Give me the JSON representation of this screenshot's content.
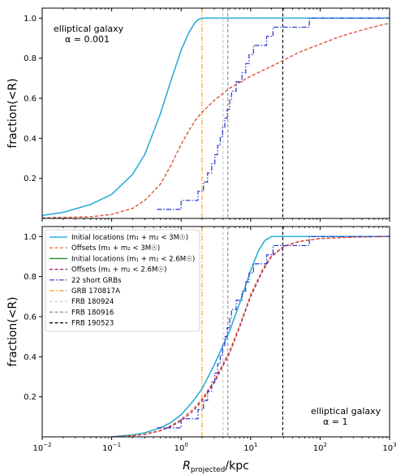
{
  "figure": {
    "xlabel": "R_projected/kpc",
    "ylabel": "fraction(<R)",
    "x_scale": "log",
    "xlim": [
      0.01,
      1000
    ],
    "ylim": [
      0,
      1.05
    ],
    "x_ticks": [
      {
        "value": 0.01,
        "base": "10",
        "exp": "−2"
      },
      {
        "value": 0.1,
        "base": "10",
        "exp": "−1"
      },
      {
        "value": 1,
        "base": "10",
        "exp": "0"
      },
      {
        "value": 10,
        "base": "10",
        "exp": "1"
      },
      {
        "value": 100,
        "base": "10",
        "exp": "2"
      },
      {
        "value": 1000,
        "base": "10",
        "exp": "3"
      }
    ],
    "y_ticks": [
      {
        "value": 0.2,
        "label": "0.2"
      },
      {
        "value": 0.4,
        "label": "0.4"
      },
      {
        "value": 0.6,
        "label": "0.6"
      },
      {
        "value": 0.8,
        "label": "0.8"
      },
      {
        "value": 1.0,
        "label": "1.0"
      }
    ],
    "colors": {
      "initial_3": "#2ab0e8",
      "offsets_3": "#e8562a",
      "initial_26": "#1a8a2a",
      "offsets_26": "#8c1a6a",
      "short_grbs": "#2233cc",
      "grb_170817a": "#f0a020",
      "frb_180924": "#c8c8c8",
      "frb_180916": "#8c8c8c",
      "frb_190523": "#000000"
    }
  },
  "chart_data": [
    {
      "type": "line",
      "panel": "top",
      "annotation": {
        "line1": "elliptical galaxy",
        "line2": "α = 0.001",
        "position": "top-left"
      },
      "xlim": [
        0.01,
        1000
      ],
      "ylim": [
        0,
        1.05
      ],
      "x_scale": "log",
      "series": [
        {
          "key": "initial_26",
          "style": "solid",
          "x": [
            0.01,
            0.02,
            0.05,
            0.1,
            0.2,
            0.3,
            0.5,
            0.7,
            1.0,
            1.3,
            1.6,
            1.8,
            2.0,
            1000
          ],
          "y": [
            0.015,
            0.03,
            0.07,
            0.12,
            0.22,
            0.32,
            0.52,
            0.68,
            0.84,
            0.93,
            0.98,
            0.995,
            1.0,
            1.0
          ]
        },
        {
          "key": "initial_3",
          "style": "solid",
          "x": [
            0.01,
            0.02,
            0.05,
            0.1,
            0.2,
            0.3,
            0.5,
            0.7,
            1.0,
            1.3,
            1.6,
            1.8,
            2.0,
            1000
          ],
          "y": [
            0.015,
            0.03,
            0.07,
            0.12,
            0.22,
            0.32,
            0.52,
            0.68,
            0.84,
            0.93,
            0.98,
            0.995,
            1.0,
            1.0
          ]
        },
        {
          "key": "offsets_26",
          "style": "dashed",
          "x": [
            0.01,
            0.05,
            0.1,
            0.2,
            0.3,
            0.5,
            0.7,
            1.0,
            1.3,
            1.6,
            2.0,
            3.0,
            5.0,
            10,
            20,
            30,
            50,
            100,
            200,
            500,
            1000
          ],
          "y": [
            0.003,
            0.008,
            0.02,
            0.05,
            0.09,
            0.17,
            0.26,
            0.37,
            0.44,
            0.49,
            0.53,
            0.59,
            0.65,
            0.71,
            0.76,
            0.79,
            0.83,
            0.87,
            0.91,
            0.95,
            0.975
          ]
        },
        {
          "key": "offsets_3",
          "style": "dashed",
          "x": [
            0.01,
            0.05,
            0.1,
            0.2,
            0.3,
            0.5,
            0.7,
            1.0,
            1.3,
            1.6,
            2.0,
            3.0,
            5.0,
            10,
            20,
            30,
            50,
            100,
            200,
            500,
            1000
          ],
          "y": [
            0.003,
            0.008,
            0.02,
            0.05,
            0.09,
            0.17,
            0.26,
            0.37,
            0.44,
            0.49,
            0.53,
            0.59,
            0.65,
            0.71,
            0.76,
            0.79,
            0.83,
            0.87,
            0.91,
            0.95,
            0.975
          ]
        },
        {
          "key": "short_grbs",
          "style": "dashdot",
          "step": true,
          "x": [
            0.45,
            1.0,
            1.75,
            2.1,
            2.4,
            2.75,
            3.05,
            3.35,
            3.65,
            3.95,
            4.25,
            4.6,
            5.0,
            5.3,
            6.2,
            7.5,
            8.5,
            9.5,
            11.0,
            14.0,
            17.0,
            21.0,
            29.0,
            40.0,
            70.0,
            1000
          ],
          "y": [
            0.045,
            0.09,
            0.136,
            0.182,
            0.227,
            0.273,
            0.318,
            0.364,
            0.409,
            0.455,
            0.5,
            0.545,
            0.591,
            0.636,
            0.682,
            0.727,
            0.773,
            0.818,
            0.864,
            0.864,
            0.909,
            0.955,
            0.955,
            0.955,
            1.0,
            1.0
          ]
        }
      ],
      "vlines": [
        {
          "key": "grb_170817a",
          "x": 2.0,
          "style": "dashdot"
        },
        {
          "key": "frb_180924",
          "x": 4.0,
          "style": "dashed"
        },
        {
          "key": "frb_180916",
          "x": 4.7,
          "style": "dashed"
        },
        {
          "key": "frb_190523",
          "x": 29.0,
          "style": "dashed"
        }
      ]
    },
    {
      "type": "line",
      "panel": "bottom",
      "annotation": {
        "line1": "elliptical galaxy",
        "line2": "α = 1",
        "position": "bottom-right"
      },
      "xlim": [
        0.01,
        1000
      ],
      "ylim": [
        0,
        1.05
      ],
      "x_scale": "log",
      "legend": {
        "position": "upper-left",
        "entries": [
          {
            "key": "initial_3",
            "label": "Initial locations (m₁ + m₂ < 3M☉)",
            "style": "solid"
          },
          {
            "key": "offsets_3",
            "label": "Offsets (m₁ + m₂ < 3M☉)",
            "style": "dashed"
          },
          {
            "key": "initial_26",
            "label": "Initial locations (m₁ + m₂ < 2.6M☉)",
            "style": "solid"
          },
          {
            "key": "offsets_26",
            "label": "Offsets (m₁ + m₂ < 2.6M☉)",
            "style": "dashed"
          },
          {
            "key": "short_grbs",
            "label": "22 short GRBs",
            "style": "dashdot"
          },
          {
            "key": "grb_170817a",
            "label": "GRB 170817A",
            "style": "dashdot"
          },
          {
            "key": "frb_180924",
            "label": "FRB 180924",
            "style": "dashed"
          },
          {
            "key": "frb_180916",
            "label": "FRB 180916",
            "style": "dashed"
          },
          {
            "key": "frb_190523",
            "label": "FRB 190523",
            "style": "dashed"
          }
        ]
      },
      "series": [
        {
          "key": "initial_26",
          "style": "solid",
          "x": [
            0.1,
            0.2,
            0.3,
            0.5,
            0.7,
            1.0,
            1.5,
            2.0,
            3.0,
            5.0,
            7.0,
            10,
            13,
            16,
            20,
            30,
            1000
          ],
          "y": [
            0.0,
            0.01,
            0.02,
            0.045,
            0.07,
            0.11,
            0.18,
            0.24,
            0.36,
            0.53,
            0.67,
            0.83,
            0.93,
            0.98,
            1.0,
            1.0,
            1.0
          ]
        },
        {
          "key": "initial_3",
          "style": "solid",
          "x": [
            0.1,
            0.2,
            0.3,
            0.5,
            0.7,
            1.0,
            1.5,
            2.0,
            3.0,
            5.0,
            7.0,
            10,
            13,
            16,
            20,
            30,
            1000
          ],
          "y": [
            0.0,
            0.01,
            0.02,
            0.045,
            0.07,
            0.11,
            0.18,
            0.24,
            0.36,
            0.53,
            0.67,
            0.83,
            0.93,
            0.98,
            1.0,
            1.0,
            1.0
          ]
        },
        {
          "key": "offsets_26",
          "style": "dashed",
          "x": [
            0.1,
            0.2,
            0.3,
            0.5,
            0.7,
            1.0,
            1.5,
            2.0,
            3.0,
            5.0,
            7.0,
            10,
            15,
            20,
            30,
            50,
            100,
            300,
            1000
          ],
          "y": [
            0.0,
            0.005,
            0.012,
            0.03,
            0.05,
            0.08,
            0.13,
            0.18,
            0.27,
            0.42,
            0.55,
            0.7,
            0.83,
            0.9,
            0.95,
            0.975,
            0.99,
            0.997,
            1.0
          ]
        },
        {
          "key": "offsets_3",
          "style": "dashed",
          "x": [
            0.1,
            0.2,
            0.3,
            0.5,
            0.7,
            1.0,
            1.5,
            2.0,
            3.0,
            5.0,
            7.0,
            10,
            15,
            20,
            30,
            50,
            100,
            300,
            1000
          ],
          "y": [
            0.0,
            0.006,
            0.014,
            0.033,
            0.055,
            0.088,
            0.14,
            0.19,
            0.28,
            0.43,
            0.56,
            0.71,
            0.84,
            0.905,
            0.952,
            0.977,
            0.991,
            0.997,
            1.0
          ]
        },
        {
          "key": "short_grbs",
          "style": "dashdot",
          "step": true,
          "x": [
            0.45,
            1.0,
            1.75,
            2.1,
            2.4,
            2.75,
            3.05,
            3.35,
            3.65,
            3.95,
            4.25,
            4.6,
            5.0,
            5.3,
            6.2,
            7.5,
            8.5,
            9.5,
            11.0,
            14.0,
            17.0,
            21.0,
            29.0,
            40.0,
            70.0,
            1000
          ],
          "y": [
            0.045,
            0.09,
            0.136,
            0.182,
            0.227,
            0.273,
            0.318,
            0.364,
            0.409,
            0.455,
            0.5,
            0.545,
            0.591,
            0.636,
            0.682,
            0.727,
            0.773,
            0.818,
            0.864,
            0.864,
            0.909,
            0.955,
            0.955,
            0.955,
            1.0,
            1.0
          ]
        }
      ],
      "vlines": [
        {
          "key": "grb_170817a",
          "x": 2.0,
          "style": "dashdot"
        },
        {
          "key": "frb_180924",
          "x": 4.0,
          "style": "dashed"
        },
        {
          "key": "frb_180916",
          "x": 4.7,
          "style": "dashed"
        },
        {
          "key": "frb_190523",
          "x": 29.0,
          "style": "dashed"
        }
      ]
    }
  ]
}
